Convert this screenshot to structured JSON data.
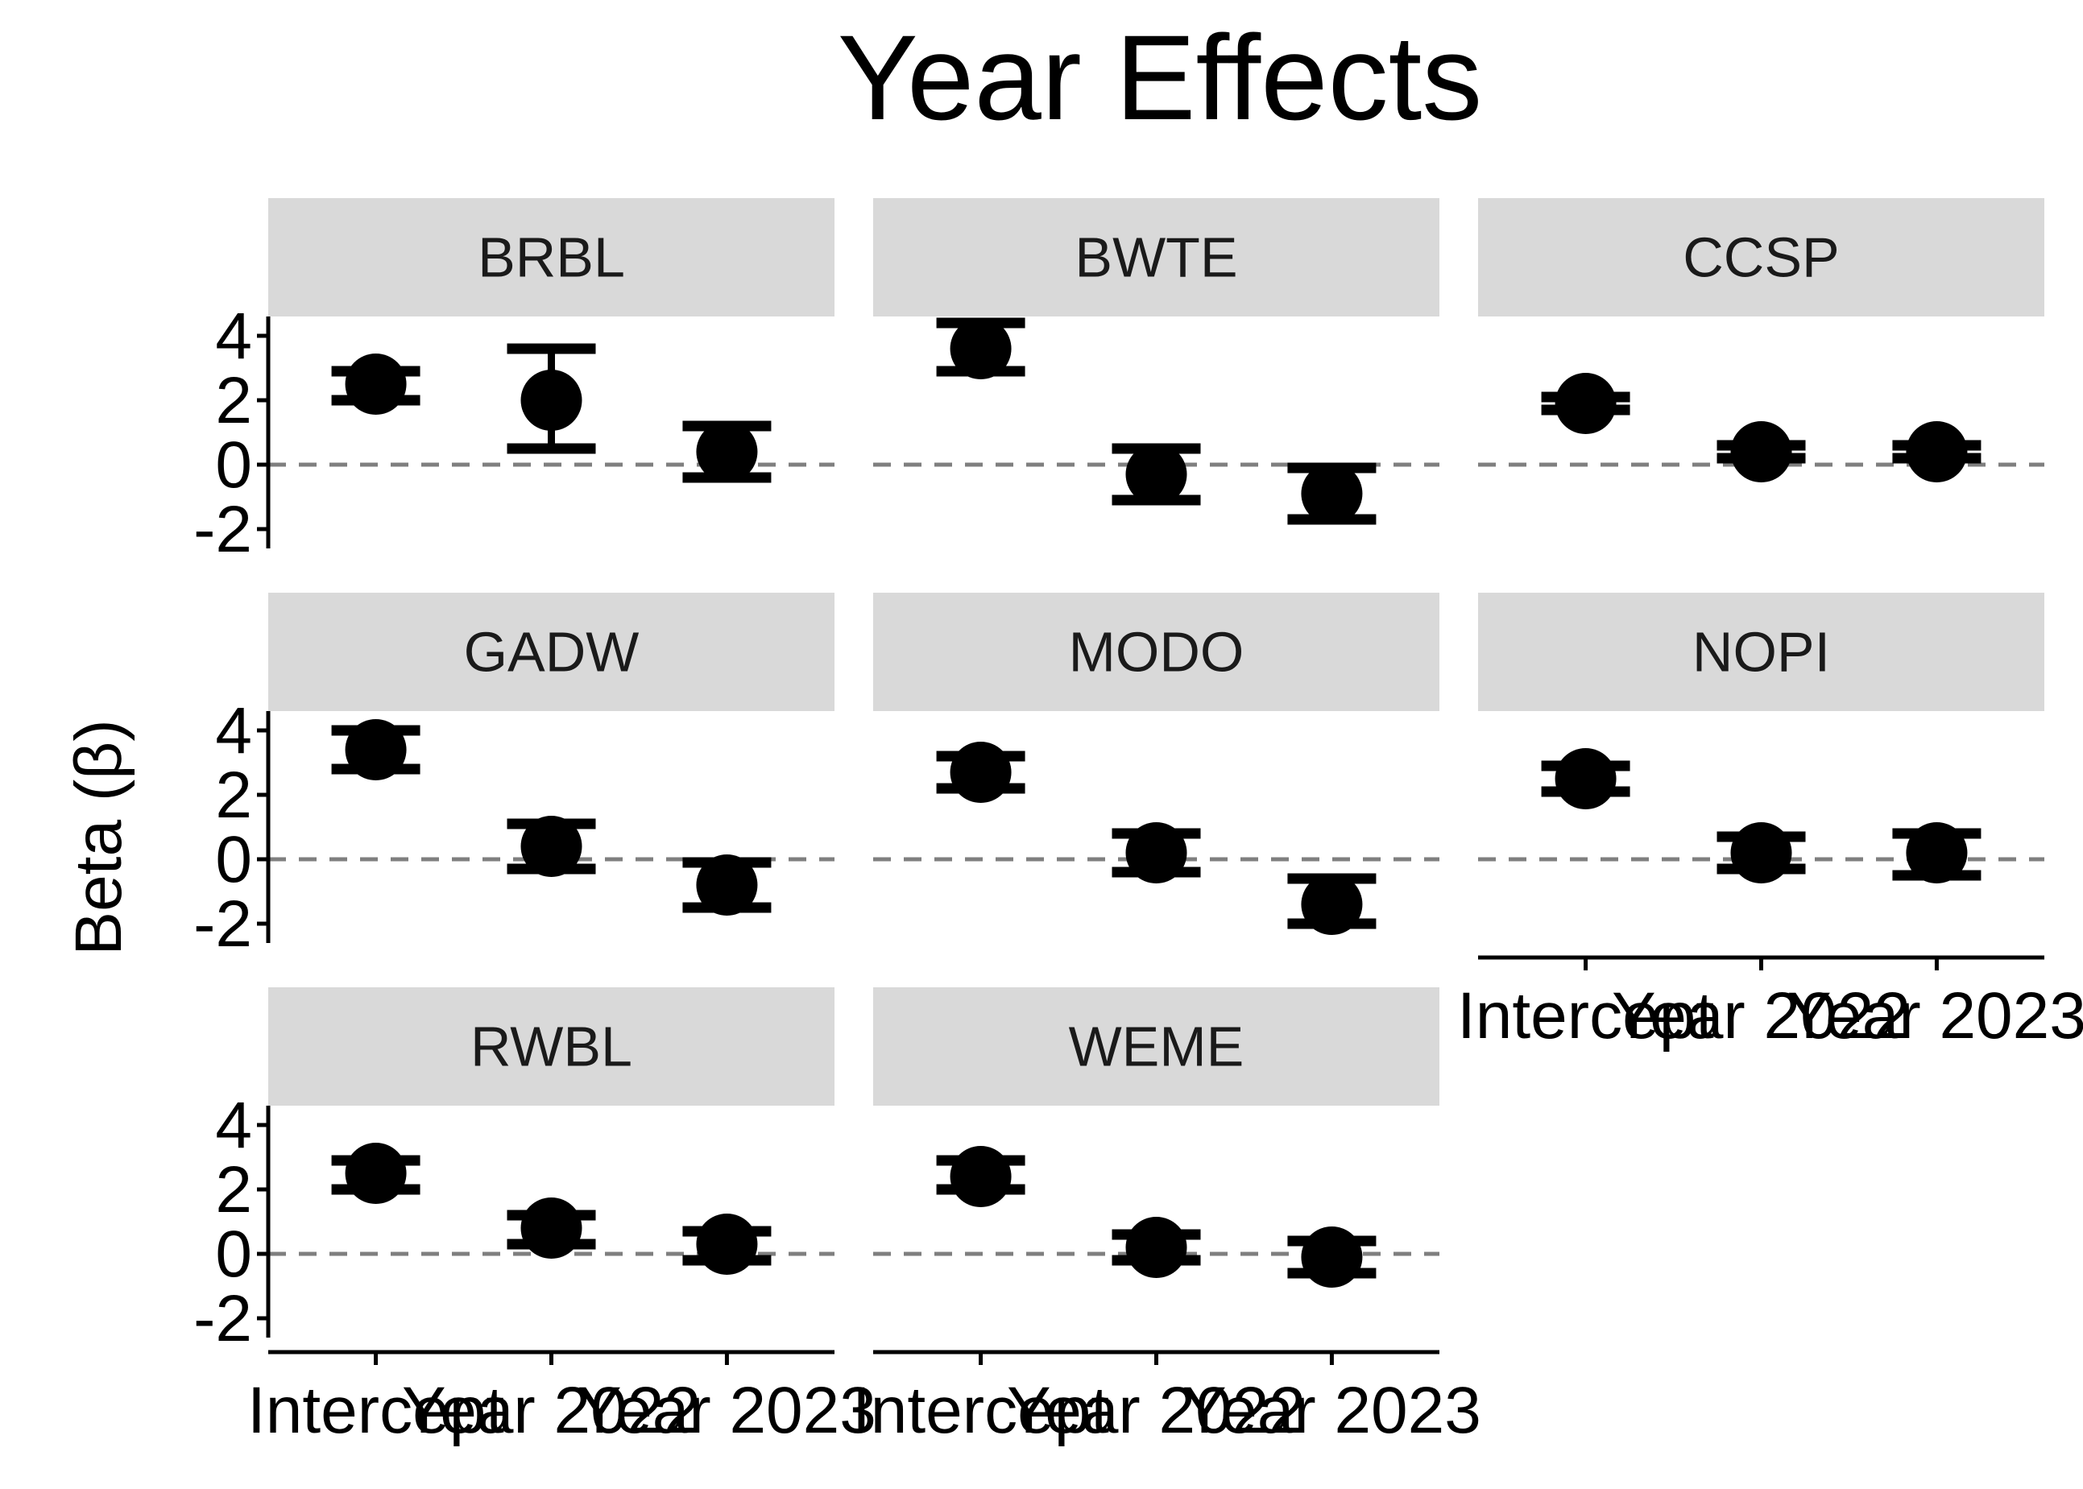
{
  "chart_data": {
    "type": "scatter",
    "title": "Year Effects",
    "ylabel": "Beta (β)",
    "xlabel": "",
    "categories": [
      "Intercept",
      "Year 2022",
      "Year 2023"
    ],
    "ylim": [
      -2.6,
      4.6
    ],
    "yticks": [
      4,
      2,
      0,
      -2
    ],
    "reference_line": 0,
    "colors": {
      "point": "#000000",
      "strip": "#d9d9d9",
      "refline": "#7f7f7f",
      "axis": "#000000"
    },
    "panels": [
      {
        "name": "BRBL",
        "estimates": [
          2.5,
          2.0,
          0.4
        ],
        "lower": [
          2.0,
          0.5,
          -0.4
        ],
        "upper": [
          2.9,
          3.6,
          1.2
        ]
      },
      {
        "name": "BWTE",
        "estimates": [
          3.6,
          -0.3,
          -0.9
        ],
        "lower": [
          2.9,
          -1.1,
          -1.7
        ],
        "upper": [
          4.4,
          0.5,
          -0.1
        ]
      },
      {
        "name": "CCSP",
        "estimates": [
          1.9,
          0.4,
          0.4
        ],
        "lower": [
          1.7,
          0.2,
          0.2
        ],
        "upper": [
          2.1,
          0.6,
          0.6
        ]
      },
      {
        "name": "GADW",
        "estimates": [
          3.4,
          0.4,
          -0.8
        ],
        "lower": [
          2.8,
          -0.3,
          -1.5
        ],
        "upper": [
          4.0,
          1.1,
          -0.1
        ]
      },
      {
        "name": "MODO",
        "estimates": [
          2.7,
          0.2,
          -1.4
        ],
        "lower": [
          2.2,
          -0.4,
          -2.0
        ],
        "upper": [
          3.2,
          0.8,
          -0.6
        ]
      },
      {
        "name": "NOPI",
        "estimates": [
          2.5,
          0.2,
          0.2
        ],
        "lower": [
          2.1,
          -0.3,
          -0.5
        ],
        "upper": [
          2.9,
          0.7,
          0.8
        ]
      },
      {
        "name": "RWBL",
        "estimates": [
          2.5,
          0.8,
          0.3
        ],
        "lower": [
          2.0,
          0.3,
          -0.2
        ],
        "upper": [
          2.9,
          1.2,
          0.7
        ]
      },
      {
        "name": "WEME",
        "estimates": [
          2.4,
          0.2,
          -0.1
        ],
        "lower": [
          2.0,
          -0.2,
          -0.6
        ],
        "upper": [
          2.9,
          0.6,
          0.4
        ]
      }
    ]
  }
}
